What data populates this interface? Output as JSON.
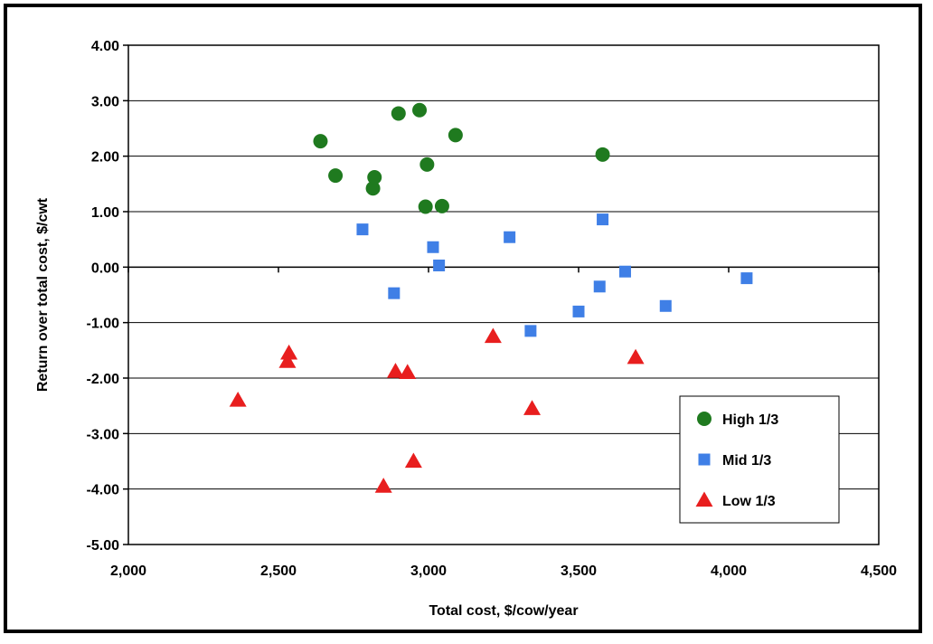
{
  "chart_data": {
    "type": "scatter",
    "xlabel": "Total cost, $/cow/year",
    "ylabel": "Return over total cost, $/cwt",
    "xlim": [
      2000,
      4500
    ],
    "ylim": [
      -5,
      4
    ],
    "x_ticks": [
      "2,000",
      "2,500",
      "3,000",
      "3,500",
      "4,000",
      "4,500"
    ],
    "y_ticks": [
      "4.00",
      "3.00",
      "2.00",
      "1.00",
      "0.00",
      "-1.00",
      "-2.00",
      "-3.00",
      "-4.00",
      "-5.00"
    ],
    "grid": "horizontal",
    "legend_position": "bottom-right",
    "series": [
      {
        "name": "High 1/3",
        "marker": "circle",
        "color": "#1f7a1f",
        "points": [
          [
            2640,
            2.27
          ],
          [
            2690,
            1.65
          ],
          [
            2815,
            1.42
          ],
          [
            2820,
            1.62
          ],
          [
            2900,
            2.77
          ],
          [
            2970,
            2.83
          ],
          [
            2990,
            1.09
          ],
          [
            2995,
            1.85
          ],
          [
            3045,
            1.1
          ],
          [
            3090,
            2.38
          ],
          [
            3580,
            2.03
          ]
        ]
      },
      {
        "name": "Mid 1/3",
        "marker": "square",
        "color": "#3f7fe6",
        "points": [
          [
            2780,
            0.68
          ],
          [
            2885,
            -0.47
          ],
          [
            3015,
            0.36
          ],
          [
            3035,
            0.03
          ],
          [
            3270,
            0.54
          ],
          [
            3340,
            -1.15
          ],
          [
            3500,
            -0.8
          ],
          [
            3570,
            -0.35
          ],
          [
            3580,
            0.86
          ],
          [
            3655,
            -0.08
          ],
          [
            3790,
            -0.7
          ],
          [
            4060,
            -0.2
          ]
        ]
      },
      {
        "name": "Low 1/3",
        "marker": "triangle",
        "color": "#e81e1e",
        "points": [
          [
            2365,
            -2.4
          ],
          [
            2530,
            -1.7
          ],
          [
            2535,
            -1.55
          ],
          [
            2850,
            -3.95
          ],
          [
            2890,
            -1.88
          ],
          [
            2930,
            -1.9
          ],
          [
            2950,
            -3.5
          ],
          [
            3215,
            -1.25
          ],
          [
            3345,
            -2.55
          ],
          [
            3690,
            -1.63
          ]
        ]
      }
    ]
  }
}
